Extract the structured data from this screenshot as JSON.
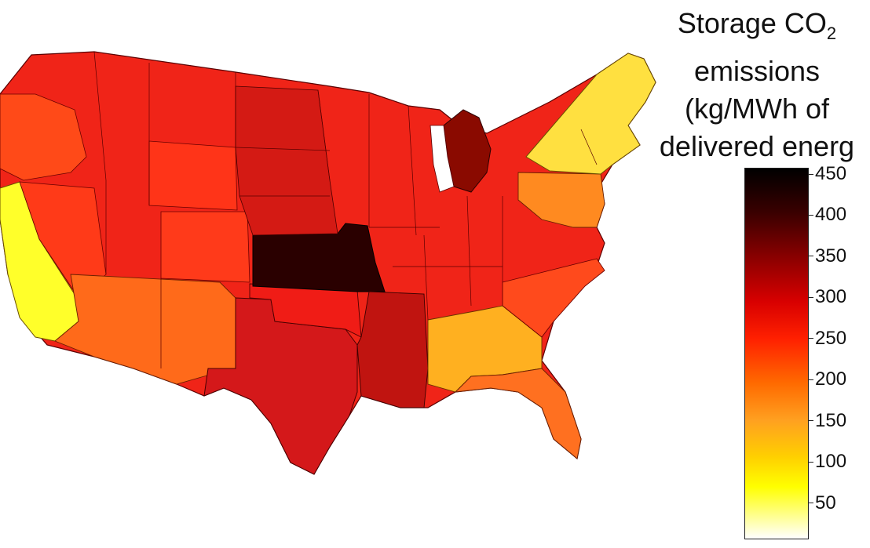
{
  "title": {
    "line1": "Storage CO",
    "line1_sub": "2",
    "line2": "emissions",
    "line3": "(kg/MWh of",
    "line4": "delivered energ"
  },
  "colorbar": {
    "min": 0,
    "max": 450,
    "ticks": [
      "450",
      "400",
      "350",
      "300",
      "250",
      "200",
      "150",
      "100",
      "50"
    ]
  },
  "regions": [
    {
      "name": "Kansas / Missouri",
      "value": 440,
      "color": "#2a0000"
    },
    {
      "name": "Michigan",
      "value": 400,
      "color": "#8a0a00"
    },
    {
      "name": "Great Plains",
      "value": 330,
      "color": "#e01c12"
    },
    {
      "name": "Arkansas / Mississippi / Louisiana",
      "value": 340,
      "color": "#c01410"
    },
    {
      "name": "Texas",
      "value": 330,
      "color": "#d4181a"
    },
    {
      "name": "Southwest",
      "value": 240,
      "color": "#ff6a1a"
    },
    {
      "name": "California",
      "value": 110,
      "color": "#ffff2a"
    },
    {
      "name": "Alabama / Georgia",
      "value": 160,
      "color": "#ffb020"
    },
    {
      "name": "Florida",
      "value": 230,
      "color": "#ff7020"
    },
    {
      "name": "New York / New England",
      "value": 130,
      "color": "#ffe040"
    },
    {
      "name": "Mid-Atlantic",
      "value": 210,
      "color": "#ff8a20"
    }
  ]
}
